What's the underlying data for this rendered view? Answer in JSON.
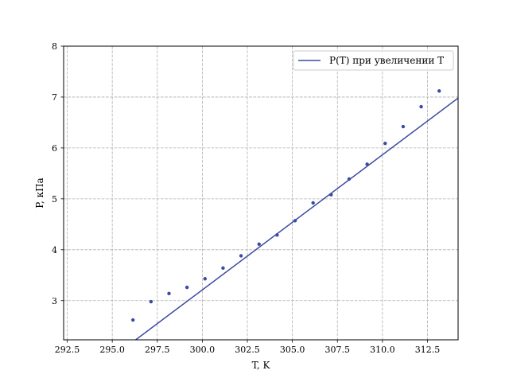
{
  "chart_data": {
    "type": "scatter",
    "xlabel": "T, K",
    "ylabel": "P, кПа",
    "xlim": [
      292.3,
      314.2
    ],
    "ylim": [
      2.23,
      8.0
    ],
    "xticks": [
      292.5,
      295.0,
      297.5,
      300.0,
      302.5,
      305.0,
      307.5,
      310.0,
      312.5
    ],
    "xtick_labels": [
      "292.5",
      "295.0",
      "297.5",
      "300.0",
      "302.5",
      "305.0",
      "307.5",
      "310.0",
      "312.5"
    ],
    "yticks": [
      3,
      4,
      5,
      6,
      7,
      8
    ],
    "ytick_labels": [
      "3",
      "4",
      "5",
      "6",
      "7",
      "8"
    ],
    "grid": true,
    "legend_position": "top-right",
    "series": [
      {
        "kind": "points",
        "color": "#3b4ba3",
        "x": [
          296.15,
          297.15,
          298.15,
          299.15,
          300.15,
          301.15,
          302.15,
          303.15,
          304.15,
          305.15,
          306.15,
          307.15,
          308.15,
          309.15,
          310.15,
          311.15,
          312.15,
          313.15
        ],
        "y": [
          2.62,
          2.98,
          3.14,
          3.26,
          3.43,
          3.64,
          3.88,
          4.11,
          4.29,
          4.57,
          4.92,
          5.08,
          5.39,
          5.68,
          6.09,
          6.42,
          6.81,
          7.12
        ]
      },
      {
        "kind": "line",
        "name": "P(T)  при увеличении T",
        "color": "#3b4ba3",
        "x": [
          296.3,
          314.2
        ],
        "y": [
          2.23,
          6.98
        ]
      }
    ]
  }
}
